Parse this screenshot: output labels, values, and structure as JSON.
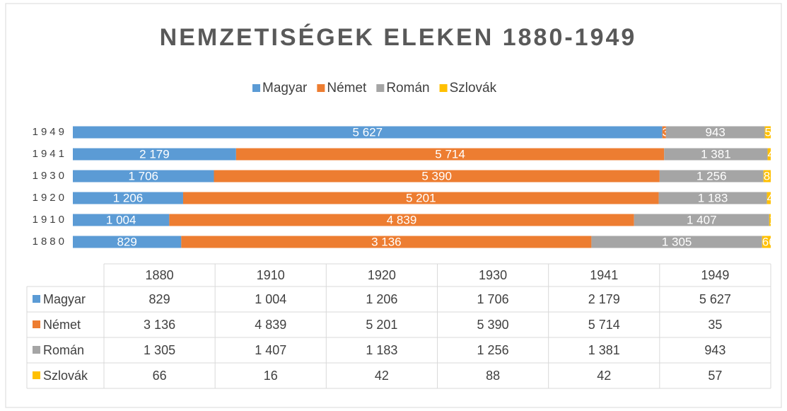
{
  "chart_data": {
    "type": "bar",
    "orientation": "horizontal",
    "stacking": "percent",
    "legend": "top",
    "data_table": true,
    "title": "NEMZETISÉGEK ELEKEN 1880-1949",
    "categories": [
      "1880",
      "1910",
      "1920",
      "1930",
      "1941",
      "1949"
    ],
    "series": [
      {
        "name": "Magyar",
        "color": "#5b9bd5",
        "values": [
          829,
          1004,
          1206,
          1706,
          2179,
          5627
        ],
        "value_labels": [
          "829",
          "1 004",
          "1 206",
          "1 706",
          "2 179",
          "5 627"
        ]
      },
      {
        "name": "Német",
        "color": "#ed7d31",
        "values": [
          3136,
          4839,
          5201,
          5390,
          5714,
          35
        ],
        "value_labels": [
          "3 136",
          "4 839",
          "5 201",
          "5 390",
          "5 714",
          "35"
        ]
      },
      {
        "name": "Román",
        "color": "#a5a5a5",
        "values": [
          1305,
          1407,
          1183,
          1256,
          1381,
          943
        ],
        "value_labels": [
          "1 305",
          "1 407",
          "1 183",
          "1 256",
          "1 381",
          "943"
        ]
      },
      {
        "name": "Szlovák",
        "color": "#ffc000",
        "values": [
          66,
          16,
          42,
          88,
          42,
          57
        ],
        "value_labels": [
          "66",
          "16",
          "42",
          "88",
          "42",
          "57"
        ]
      }
    ]
  }
}
